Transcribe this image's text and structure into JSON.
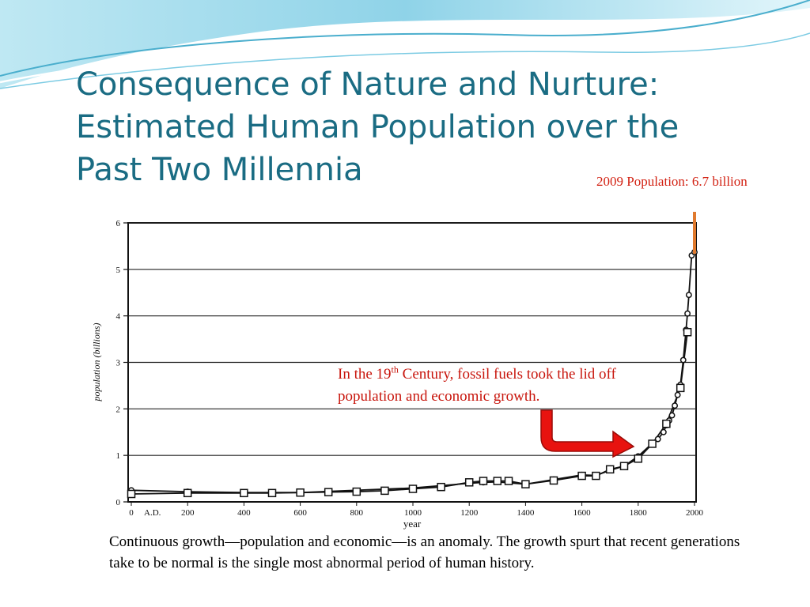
{
  "slide": {
    "title_lines": [
      "Consequence of Nature and Nurture:",
      "Estimated Human Population over the",
      "Past Two Millennia"
    ],
    "population_note": "2009 Population: 6.7 billion",
    "callout": {
      "before": "In the 19",
      "sup": "th",
      "after": " Century, fossil fuels took the lid off population and economic growth."
    },
    "caption": "Continuous growth—population and economic—is an anomaly. The growth spurt that recent generations take to be normal is the single most abnormal period of human history.",
    "colors": {
      "title": "#1a6c83",
      "callout": "#c8150c",
      "arrow_fill": "#e8130f",
      "orange_arrow": "#e07a2e",
      "header_swoosh": "#8fd3e8"
    },
    "icons": {
      "callout_arrow": "red-bent-arrow-icon",
      "population_arrow": "orange-up-arrow-icon"
    }
  },
  "chart_data": {
    "type": "line",
    "xlabel": "year",
    "ylabel": "population (billions)",
    "x_tick_labels": [
      "0",
      "A.D.",
      "200",
      "400",
      "600",
      "800",
      "1000",
      "1200",
      "1400",
      "1600",
      "1800",
      "2000"
    ],
    "y_tick_labels": [
      "0",
      "1",
      "2",
      "3",
      "4",
      "5",
      "6"
    ],
    "xlim": [
      0,
      2000
    ],
    "ylim": [
      0,
      6
    ],
    "grid": "horizontal",
    "series": [
      {
        "marker": "circle",
        "x": [
          0,
          200,
          400,
          600,
          1000,
          1200,
          1250,
          1300,
          1400,
          1500,
          1600,
          1650,
          1700,
          1750,
          1800,
          1850,
          1870,
          1890,
          1900,
          1910,
          1920,
          1930,
          1940,
          1950,
          1960,
          1970,
          1975,
          1980,
          1990,
          2000
        ],
        "y": [
          0.25,
          0.22,
          0.2,
          0.2,
          0.3,
          0.4,
          0.42,
          0.43,
          0.38,
          0.48,
          0.58,
          0.57,
          0.68,
          0.77,
          0.98,
          1.26,
          1.35,
          1.5,
          1.65,
          1.75,
          1.86,
          2.07,
          2.3,
          2.52,
          3.05,
          3.7,
          4.05,
          4.45,
          5.3,
          5.37
        ]
      },
      {
        "marker": "square",
        "x": [
          0,
          200,
          400,
          500,
          600,
          700,
          800,
          900,
          1000,
          1100,
          1200,
          1250,
          1300,
          1340,
          1400,
          1500,
          1600,
          1650,
          1700,
          1750,
          1800,
          1850,
          1900,
          1950,
          1975
        ],
        "y": [
          0.17,
          0.19,
          0.19,
          0.19,
          0.2,
          0.21,
          0.22,
          0.24,
          0.28,
          0.32,
          0.42,
          0.45,
          0.45,
          0.45,
          0.38,
          0.46,
          0.56,
          0.56,
          0.7,
          0.77,
          0.93,
          1.25,
          1.68,
          2.45,
          3.65
        ]
      }
    ]
  }
}
